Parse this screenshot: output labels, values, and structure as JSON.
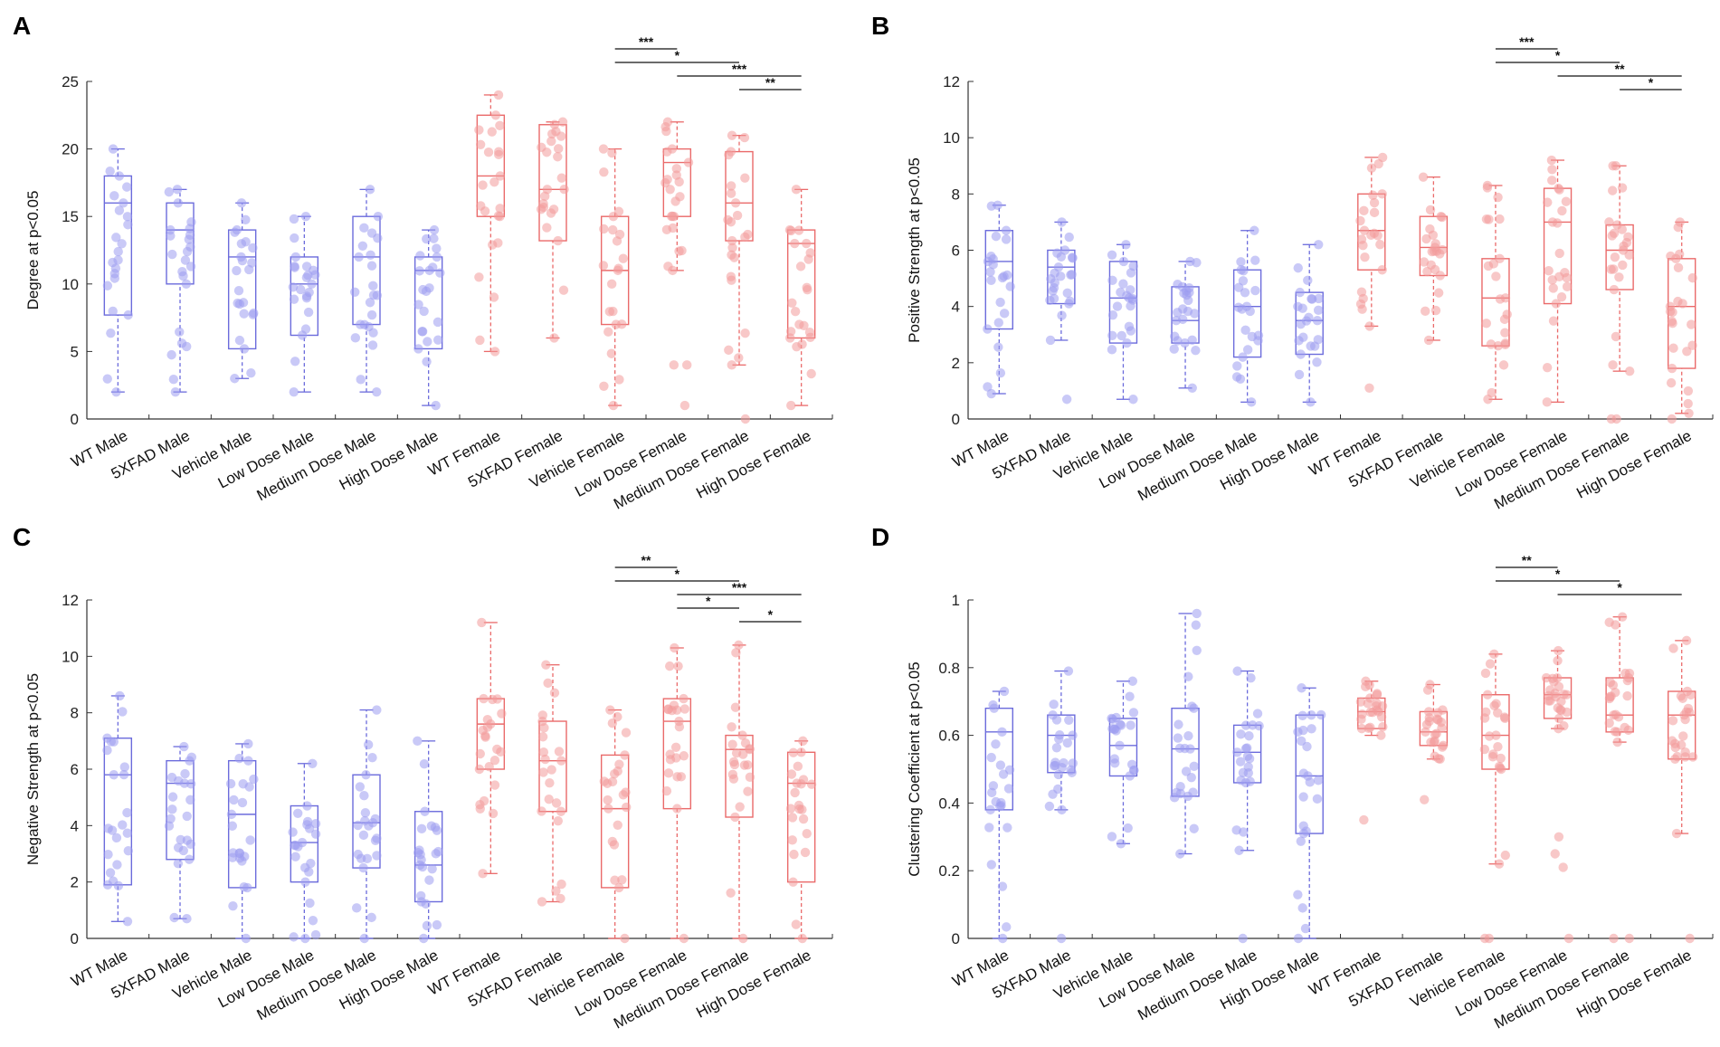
{
  "colors": {
    "male": "#6b6bdc",
    "male_point": "#9d9df0",
    "female": "#ea6a6a",
    "female_point": "#f29a9a",
    "axis": "#333333"
  },
  "chart_data": [
    {
      "type": "box",
      "panel_label": "A",
      "title": "",
      "xlabel": "",
      "ylabel": "Degree at p<0.05",
      "ylim": [
        0,
        25
      ],
      "yticks": [
        "0",
        "5",
        "10",
        "15",
        "20",
        "25"
      ],
      "categories": [
        "WT Male",
        "5XFAD Male",
        "Vehicle Male",
        "Low Dose Male",
        "Medium Dose Male",
        "High Dose Male",
        "WT Female",
        "5XFAD Female",
        "Vehicle Female",
        "Low Dose Female",
        "Medium Dose Female",
        "High Dose Female"
      ],
      "groups": [
        "male",
        "male",
        "male",
        "male",
        "male",
        "male",
        "female",
        "female",
        "female",
        "female",
        "female",
        "female"
      ],
      "boxes": [
        {
          "min": 2,
          "q1": 7.7,
          "median": 16,
          "q3": 18,
          "max": 20
        },
        {
          "min": 2,
          "q1": 10,
          "median": 14,
          "q3": 16,
          "max": 17
        },
        {
          "min": 3,
          "q1": 5.2,
          "median": 12,
          "q3": 14,
          "max": 16
        },
        {
          "min": 2,
          "q1": 6.2,
          "median": 10,
          "q3": 12,
          "max": 15
        },
        {
          "min": 2,
          "q1": 7,
          "median": 12,
          "q3": 15,
          "max": 17
        },
        {
          "min": 1,
          "q1": 5.2,
          "median": 11,
          "q3": 12,
          "max": 14
        },
        {
          "min": 5,
          "q1": 15,
          "median": 18,
          "q3": 22.5,
          "max": 24
        },
        {
          "min": 6,
          "q1": 13.2,
          "median": 17,
          "q3": 21.8,
          "max": 22
        },
        {
          "min": 1,
          "q1": 7,
          "median": 11,
          "q3": 15,
          "max": 20
        },
        {
          "min": 11,
          "q1": 15,
          "median": 19,
          "q3": 20,
          "max": 22
        },
        {
          "min": 4,
          "q1": 13.2,
          "median": 16,
          "q3": 19.8,
          "max": 21
        },
        {
          "min": 1,
          "q1": 6,
          "median": 13,
          "q3": 14,
          "max": 17
        }
      ],
      "outliers": [
        [],
        [],
        [],
        [],
        [],
        [],
        [],
        [],
        [],
        [
          1,
          4,
          4
        ],
        [
          0
        ],
        []
      ],
      "significance": [
        {
          "from": 8,
          "to": 9,
          "label": "***"
        },
        {
          "from": 8,
          "to": 10,
          "label": "*"
        },
        {
          "from": 9,
          "to": 11,
          "label": "***"
        },
        {
          "from": 10,
          "to": 11,
          "label": "**"
        }
      ]
    },
    {
      "type": "box",
      "panel_label": "B",
      "title": "",
      "xlabel": "",
      "ylabel": "Positive Strength at p<0.05",
      "ylim": [
        0,
        12
      ],
      "yticks": [
        "0",
        "2",
        "4",
        "6",
        "8",
        "10",
        "12"
      ],
      "categories": [
        "WT Male",
        "5XFAD Male",
        "Vehicle Male",
        "Low Dose Male",
        "Medium Dose Male",
        "High Dose Male",
        "WT Female",
        "5XFAD Female",
        "Vehicle Female",
        "Low Dose Female",
        "Medium Dose Female",
        "High Dose Female"
      ],
      "groups": [
        "male",
        "male",
        "male",
        "male",
        "male",
        "male",
        "female",
        "female",
        "female",
        "female",
        "female",
        "female"
      ],
      "boxes": [
        {
          "min": 0.9,
          "q1": 3.2,
          "median": 5.6,
          "q3": 6.7,
          "max": 7.6
        },
        {
          "min": 2.8,
          "q1": 4.1,
          "median": 5.4,
          "q3": 6,
          "max": 7
        },
        {
          "min": 0.7,
          "q1": 2.7,
          "median": 4.3,
          "q3": 5.6,
          "max": 6.2
        },
        {
          "min": 1.1,
          "q1": 2.7,
          "median": 3.5,
          "q3": 4.7,
          "max": 5.6
        },
        {
          "min": 0.6,
          "q1": 2.2,
          "median": 4,
          "q3": 5.3,
          "max": 6.7
        },
        {
          "min": 0.6,
          "q1": 2.3,
          "median": 3.5,
          "q3": 4.5,
          "max": 6.2
        },
        {
          "min": 3.3,
          "q1": 5.3,
          "median": 6.7,
          "q3": 8,
          "max": 9.3
        },
        {
          "min": 2.8,
          "q1": 5.1,
          "median": 6.1,
          "q3": 7.2,
          "max": 8.6
        },
        {
          "min": 0.7,
          "q1": 2.6,
          "median": 4.3,
          "q3": 5.7,
          "max": 8.3
        },
        {
          "min": 0.6,
          "q1": 4.1,
          "median": 7,
          "q3": 8.2,
          "max": 9.2
        },
        {
          "min": 1.7,
          "q1": 4.6,
          "median": 6,
          "q3": 6.9,
          "max": 9
        },
        {
          "min": 0.2,
          "q1": 1.8,
          "median": 4,
          "q3": 5.7,
          "max": 7
        }
      ],
      "outliers": [
        [],
        [
          0.7
        ],
        [],
        [],
        [],
        [],
        [
          1.1
        ],
        [],
        [],
        [],
        [
          0,
          0
        ],
        [
          0
        ]
      ],
      "significance": [
        {
          "from": 8,
          "to": 9,
          "label": "***"
        },
        {
          "from": 8,
          "to": 10,
          "label": "*"
        },
        {
          "from": 9,
          "to": 11,
          "label": "**"
        },
        {
          "from": 10,
          "to": 11,
          "label": "*"
        }
      ]
    },
    {
      "type": "box",
      "panel_label": "C",
      "title": "",
      "xlabel": "",
      "ylabel": "Negative Strength at p<0.05",
      "ylim": [
        0,
        12
      ],
      "yticks": [
        "0",
        "2",
        "4",
        "6",
        "8",
        "10",
        "12"
      ],
      "categories": [
        "WT Male",
        "5XFAD Male",
        "Vehicle Male",
        "Low Dose Male",
        "Medium Dose Male",
        "High Dose Male",
        "WT Female",
        "5XFAD Female",
        "Vehicle Female",
        "Low Dose Female",
        "Medium Dose Female",
        "High Dose Female"
      ],
      "groups": [
        "male",
        "male",
        "male",
        "male",
        "male",
        "male",
        "female",
        "female",
        "female",
        "female",
        "female",
        "female"
      ],
      "boxes": [
        {
          "min": 0.6,
          "q1": 1.9,
          "median": 5.8,
          "q3": 7.1,
          "max": 8.6
        },
        {
          "min": 0.7,
          "q1": 2.8,
          "median": 5.5,
          "q3": 6.3,
          "max": 6.8
        },
        {
          "min": 0,
          "q1": 1.8,
          "median": 4.4,
          "q3": 6.3,
          "max": 6.9
        },
        {
          "min": 0,
          "q1": 2,
          "median": 3.4,
          "q3": 4.7,
          "max": 6.2
        },
        {
          "min": 0,
          "q1": 2.5,
          "median": 4.1,
          "q3": 5.8,
          "max": 8.1
        },
        {
          "min": 0,
          "q1": 1.3,
          "median": 2.6,
          "q3": 4.5,
          "max": 7
        },
        {
          "min": 2.3,
          "q1": 6,
          "median": 7.6,
          "q3": 8.5,
          "max": 11.2
        },
        {
          "min": 1.3,
          "q1": 4.5,
          "median": 6.3,
          "q3": 7.7,
          "max": 9.7
        },
        {
          "min": 0,
          "q1": 1.8,
          "median": 4.6,
          "q3": 6.5,
          "max": 8.1
        },
        {
          "min": 0,
          "q1": 4.6,
          "median": 7.7,
          "q3": 8.5,
          "max": 10.3
        },
        {
          "min": 0,
          "q1": 4.3,
          "median": 6.7,
          "q3": 7.2,
          "max": 10.4
        },
        {
          "min": 0,
          "q1": 2,
          "median": 5.5,
          "q3": 6.6,
          "max": 7
        }
      ],
      "outliers": [
        [],
        [],
        [],
        [],
        [],
        [],
        [],
        [],
        [],
        [],
        [],
        []
      ],
      "significance": [
        {
          "from": 8,
          "to": 9,
          "label": "**"
        },
        {
          "from": 8,
          "to": 10,
          "label": "*"
        },
        {
          "from": 9,
          "to": 11,
          "label": "***"
        },
        {
          "from": 9,
          "to": 10,
          "label": "*"
        },
        {
          "from": 10,
          "to": 11,
          "label": "*"
        }
      ]
    },
    {
      "type": "box",
      "panel_label": "D",
      "title": "",
      "xlabel": "",
      "ylabel": "Clustering Coefficient at p<0.05",
      "ylim": [
        0,
        1
      ],
      "yticks": [
        "0",
        "0.2",
        "0.4",
        "0.6",
        "0.8",
        "1"
      ],
      "categories": [
        "WT Male",
        "5XFAD Male",
        "Vehicle Male",
        "Low Dose Male",
        "Medium Dose Male",
        "High Dose Male",
        "WT Female",
        "5XFAD Female",
        "Vehicle Female",
        "Low Dose Female",
        "Medium Dose Female",
        "High Dose Female"
      ],
      "groups": [
        "male",
        "male",
        "male",
        "male",
        "male",
        "male",
        "female",
        "female",
        "female",
        "female",
        "female",
        "female"
      ],
      "boxes": [
        {
          "min": 0,
          "q1": 0.38,
          "median": 0.61,
          "q3": 0.68,
          "max": 0.73
        },
        {
          "min": 0.38,
          "q1": 0.49,
          "median": 0.6,
          "q3": 0.66,
          "max": 0.79
        },
        {
          "min": 0.28,
          "q1": 0.48,
          "median": 0.57,
          "q3": 0.65,
          "max": 0.76
        },
        {
          "min": 0.25,
          "q1": 0.42,
          "median": 0.56,
          "q3": 0.68,
          "max": 0.96
        },
        {
          "min": 0.26,
          "q1": 0.46,
          "median": 0.55,
          "q3": 0.63,
          "max": 0.79
        },
        {
          "min": 0,
          "q1": 0.31,
          "median": 0.48,
          "q3": 0.66,
          "max": 0.74
        },
        {
          "min": 0.6,
          "q1": 0.62,
          "median": 0.67,
          "q3": 0.71,
          "max": 0.76
        },
        {
          "min": 0.53,
          "q1": 0.57,
          "median": 0.61,
          "q3": 0.67,
          "max": 0.75
        },
        {
          "min": 0.22,
          "q1": 0.5,
          "median": 0.6,
          "q3": 0.72,
          "max": 0.84
        },
        {
          "min": 0.62,
          "q1": 0.65,
          "median": 0.72,
          "q3": 0.77,
          "max": 0.85
        },
        {
          "min": 0.58,
          "q1": 0.61,
          "median": 0.66,
          "q3": 0.77,
          "max": 0.95
        },
        {
          "min": 0.31,
          "q1": 0.53,
          "median": 0.66,
          "q3": 0.73,
          "max": 0.88
        }
      ],
      "outliers": [
        [],
        [
          0
        ],
        [],
        [],
        [
          0
        ],
        [],
        [
          0.35
        ],
        [
          0.41
        ],
        [
          0,
          0
        ],
        [
          0,
          0.21,
          0.25,
          0.3
        ],
        [
          0,
          0
        ],
        [
          0
        ]
      ],
      "significance": [
        {
          "from": 8,
          "to": 9,
          "label": "**"
        },
        {
          "from": 8,
          "to": 10,
          "label": "*"
        },
        {
          "from": 9,
          "to": 11,
          "label": "*"
        }
      ]
    }
  ]
}
